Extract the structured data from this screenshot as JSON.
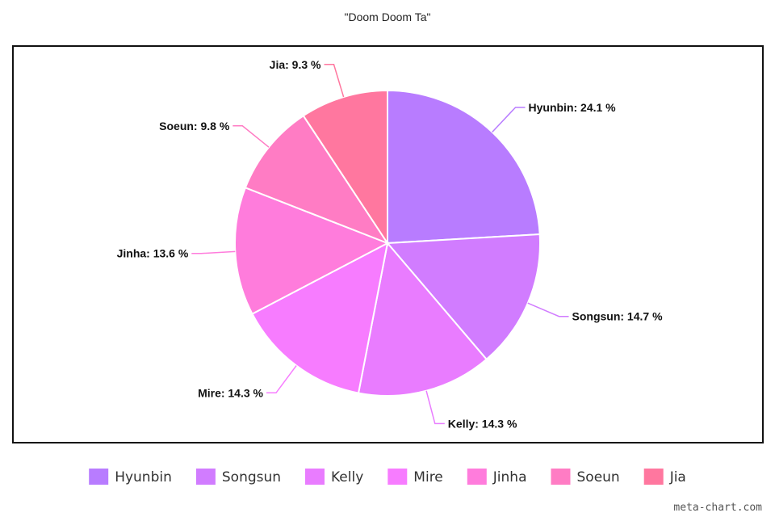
{
  "chart_data": {
    "type": "pie",
    "title": "\"Doom Doom Ta\"",
    "label_format": "{name}: {value} %",
    "legend_position": "bottom",
    "slices": [
      {
        "name": "Hyunbin",
        "value": 24.1,
        "color": "#b87cff"
      },
      {
        "name": "Songsun",
        "value": 14.7,
        "color": "#d17cff"
      },
      {
        "name": "Kelly",
        "value": 14.3,
        "color": "#e97cff"
      },
      {
        "name": "Mire",
        "value": 14.3,
        "color": "#f77cff"
      },
      {
        "name": "Jinha",
        "value": 13.6,
        "color": "#ff7cdc"
      },
      {
        "name": "Soeun",
        "value": 9.8,
        "color": "#ff7cc4"
      },
      {
        "name": "Jia",
        "value": 9.3,
        "color": "#ff779f"
      }
    ]
  },
  "watermark": "meta-chart.com"
}
